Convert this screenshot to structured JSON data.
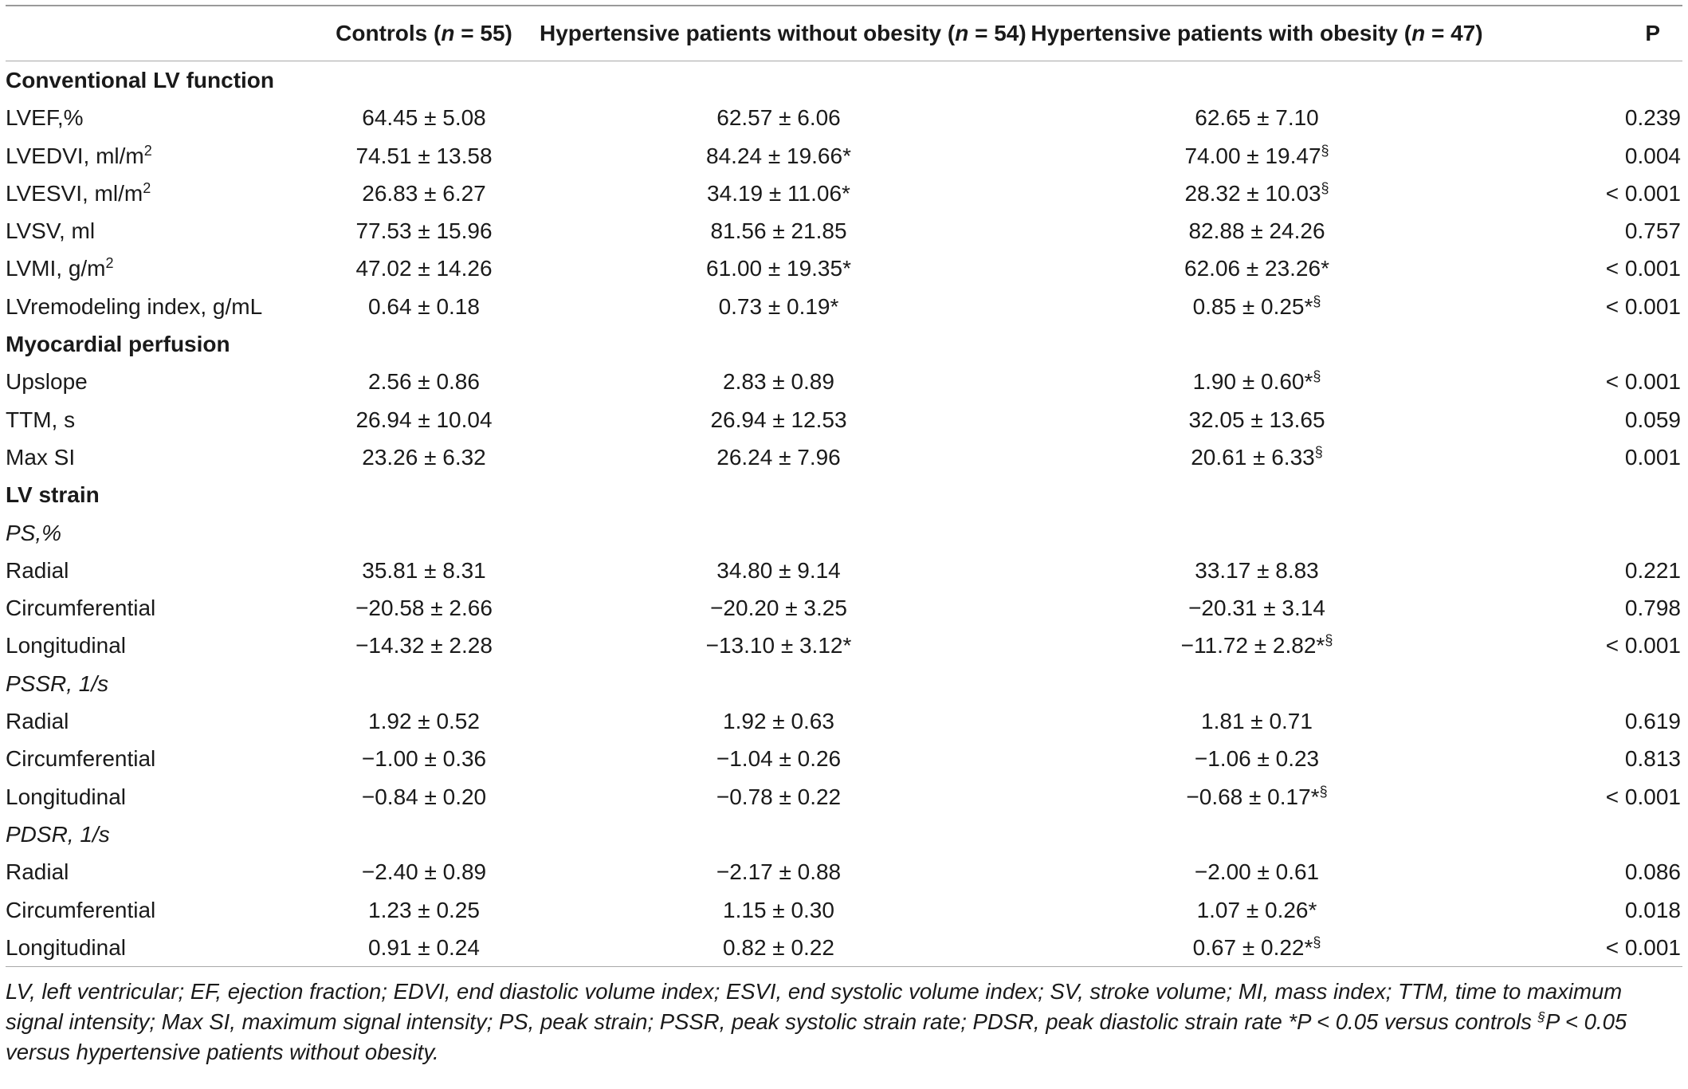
{
  "header": {
    "col0": "",
    "col1": {
      "pre": "Controls (",
      "n": "n",
      "post": " = 55)"
    },
    "col2": {
      "pre": "Hypertensive patients without obesity (",
      "n": "n",
      "post": " = 54)"
    },
    "col3": {
      "pre": "Hypertensive patients with obesity (",
      "n": "n",
      "post": " = 47)"
    },
    "col4": "P"
  },
  "rows": [
    {
      "type": "section",
      "label": "Conventional LV function"
    },
    {
      "type": "data",
      "label": "LVEF,%",
      "c1": "64.45 ± 5.08",
      "c2": "62.57 ± 6.06",
      "c3": "62.65 ± 7.10",
      "p": "0.239"
    },
    {
      "type": "data",
      "label": "LVEDVI, ml/m",
      "label_sup": "2",
      "c1": "74.51 ± 13.58",
      "c2": "84.24 ± 19.66*",
      "c3": "74.00 ± 19.47",
      "c3_sup": "§",
      "p": "0.004"
    },
    {
      "type": "data",
      "label": "LVESVI, ml/m",
      "label_sup": "2",
      "c1": "26.83 ± 6.27",
      "c2": "34.19 ± 11.06*",
      "c3": "28.32 ± 10.03",
      "c3_sup": "§",
      "p": "< 0.001"
    },
    {
      "type": "data",
      "label": "LVSV, ml",
      "c1": "77.53 ± 15.96",
      "c2": "81.56 ± 21.85",
      "c3": "82.88 ± 24.26",
      "p": "0.757"
    },
    {
      "type": "data",
      "label": "LVMI, g/m",
      "label_sup": "2",
      "c1": "47.02 ± 14.26",
      "c2": "61.00 ± 19.35*",
      "c3": "62.06 ± 23.26*",
      "p": "< 0.001"
    },
    {
      "type": "data",
      "label": "LVremodeling index, g/mL",
      "c1": "0.64 ± 0.18",
      "c2": "0.73 ± 0.19*",
      "c3": "0.85 ± 0.25*",
      "c3_sup": "§",
      "p": "< 0.001"
    },
    {
      "type": "section",
      "label": "Myocardial perfusion"
    },
    {
      "type": "data",
      "label": "Upslope",
      "c1": "2.56 ± 0.86",
      "c2": "2.83 ± 0.89",
      "c3": "1.90 ± 0.60*",
      "c3_sup": "§",
      "p": "< 0.001"
    },
    {
      "type": "data",
      "label": "TTM, s",
      "c1": "26.94 ± 10.04",
      "c2": "26.94 ± 12.53",
      "c3": "32.05 ± 13.65",
      "p": "0.059"
    },
    {
      "type": "data",
      "label": "Max SI",
      "c1": "23.26 ± 6.32",
      "c2": "26.24 ± 7.96",
      "c3": "20.61 ± 6.33",
      "c3_sup": "§",
      "p": "0.001"
    },
    {
      "type": "section",
      "label": "LV strain"
    },
    {
      "type": "subsection",
      "label": "PS,%"
    },
    {
      "type": "data",
      "label": "Radial",
      "c1": "35.81 ± 8.31",
      "c2": "34.80 ± 9.14",
      "c3": "33.17 ± 8.83",
      "p": "0.221"
    },
    {
      "type": "data",
      "label": "Circumferential",
      "c1": "−20.58 ± 2.66",
      "c2": "−20.20 ± 3.25",
      "c3": "−20.31 ± 3.14",
      "p": "0.798"
    },
    {
      "type": "data",
      "label": "Longitudinal",
      "c1": "−14.32 ± 2.28",
      "c2": "−13.10 ± 3.12*",
      "c3": "−11.72 ± 2.82*",
      "c3_sup": "§",
      "p": "< 0.001"
    },
    {
      "type": "subsection",
      "label": "PSSR, 1/s"
    },
    {
      "type": "data",
      "label": "Radial",
      "c1": "1.92 ± 0.52",
      "c2": "1.92 ± 0.63",
      "c3": "1.81 ± 0.71",
      "p": "0.619"
    },
    {
      "type": "data",
      "label": "Circumferential",
      "c1": "−1.00 ± 0.36",
      "c2": "−1.04 ± 0.26",
      "c3": "−1.06 ± 0.23",
      "p": "0.813"
    },
    {
      "type": "data",
      "label": "Longitudinal",
      "c1": "−0.84 ± 0.20",
      "c2": "−0.78 ± 0.22",
      "c3": "−0.68 ± 0.17*",
      "c3_sup": "§",
      "p": "< 0.001"
    },
    {
      "type": "subsection",
      "label": "PDSR, 1/s"
    },
    {
      "type": "data",
      "label": "Radial",
      "c1": "−2.40 ± 0.89",
      "c2": "−2.17 ± 0.88",
      "c3": "−2.00 ± 0.61",
      "p": "0.086"
    },
    {
      "type": "data",
      "label": "Circumferential",
      "c1": "1.23 ± 0.25",
      "c2": "1.15 ± 0.30",
      "c3": "1.07 ± 0.26*",
      "p": "0.018"
    },
    {
      "type": "data",
      "label": "Longitudinal",
      "c1": "0.91 ± 0.24",
      "c2": "0.82 ± 0.22",
      "c3": "0.67 ± 0.22*",
      "c3_sup": "§",
      "p": "< 0.001"
    }
  ],
  "footnote": {
    "text1": "LV, left ventricular; EF, ejection fraction; EDVI, end diastolic volume index; ESVI, end systolic volume index; SV, stroke volume; MI, mass index; TTM, time to maximum signal intensity; Max SI, maximum signal intensity; PS, peak strain; PSSR, peak systolic strain rate; PDSR, peak diastolic strain rate *P < 0.05 versus controls ",
    "sup": "§",
    "text2": "P < 0.05 versus hypertensive patients without obesity."
  }
}
